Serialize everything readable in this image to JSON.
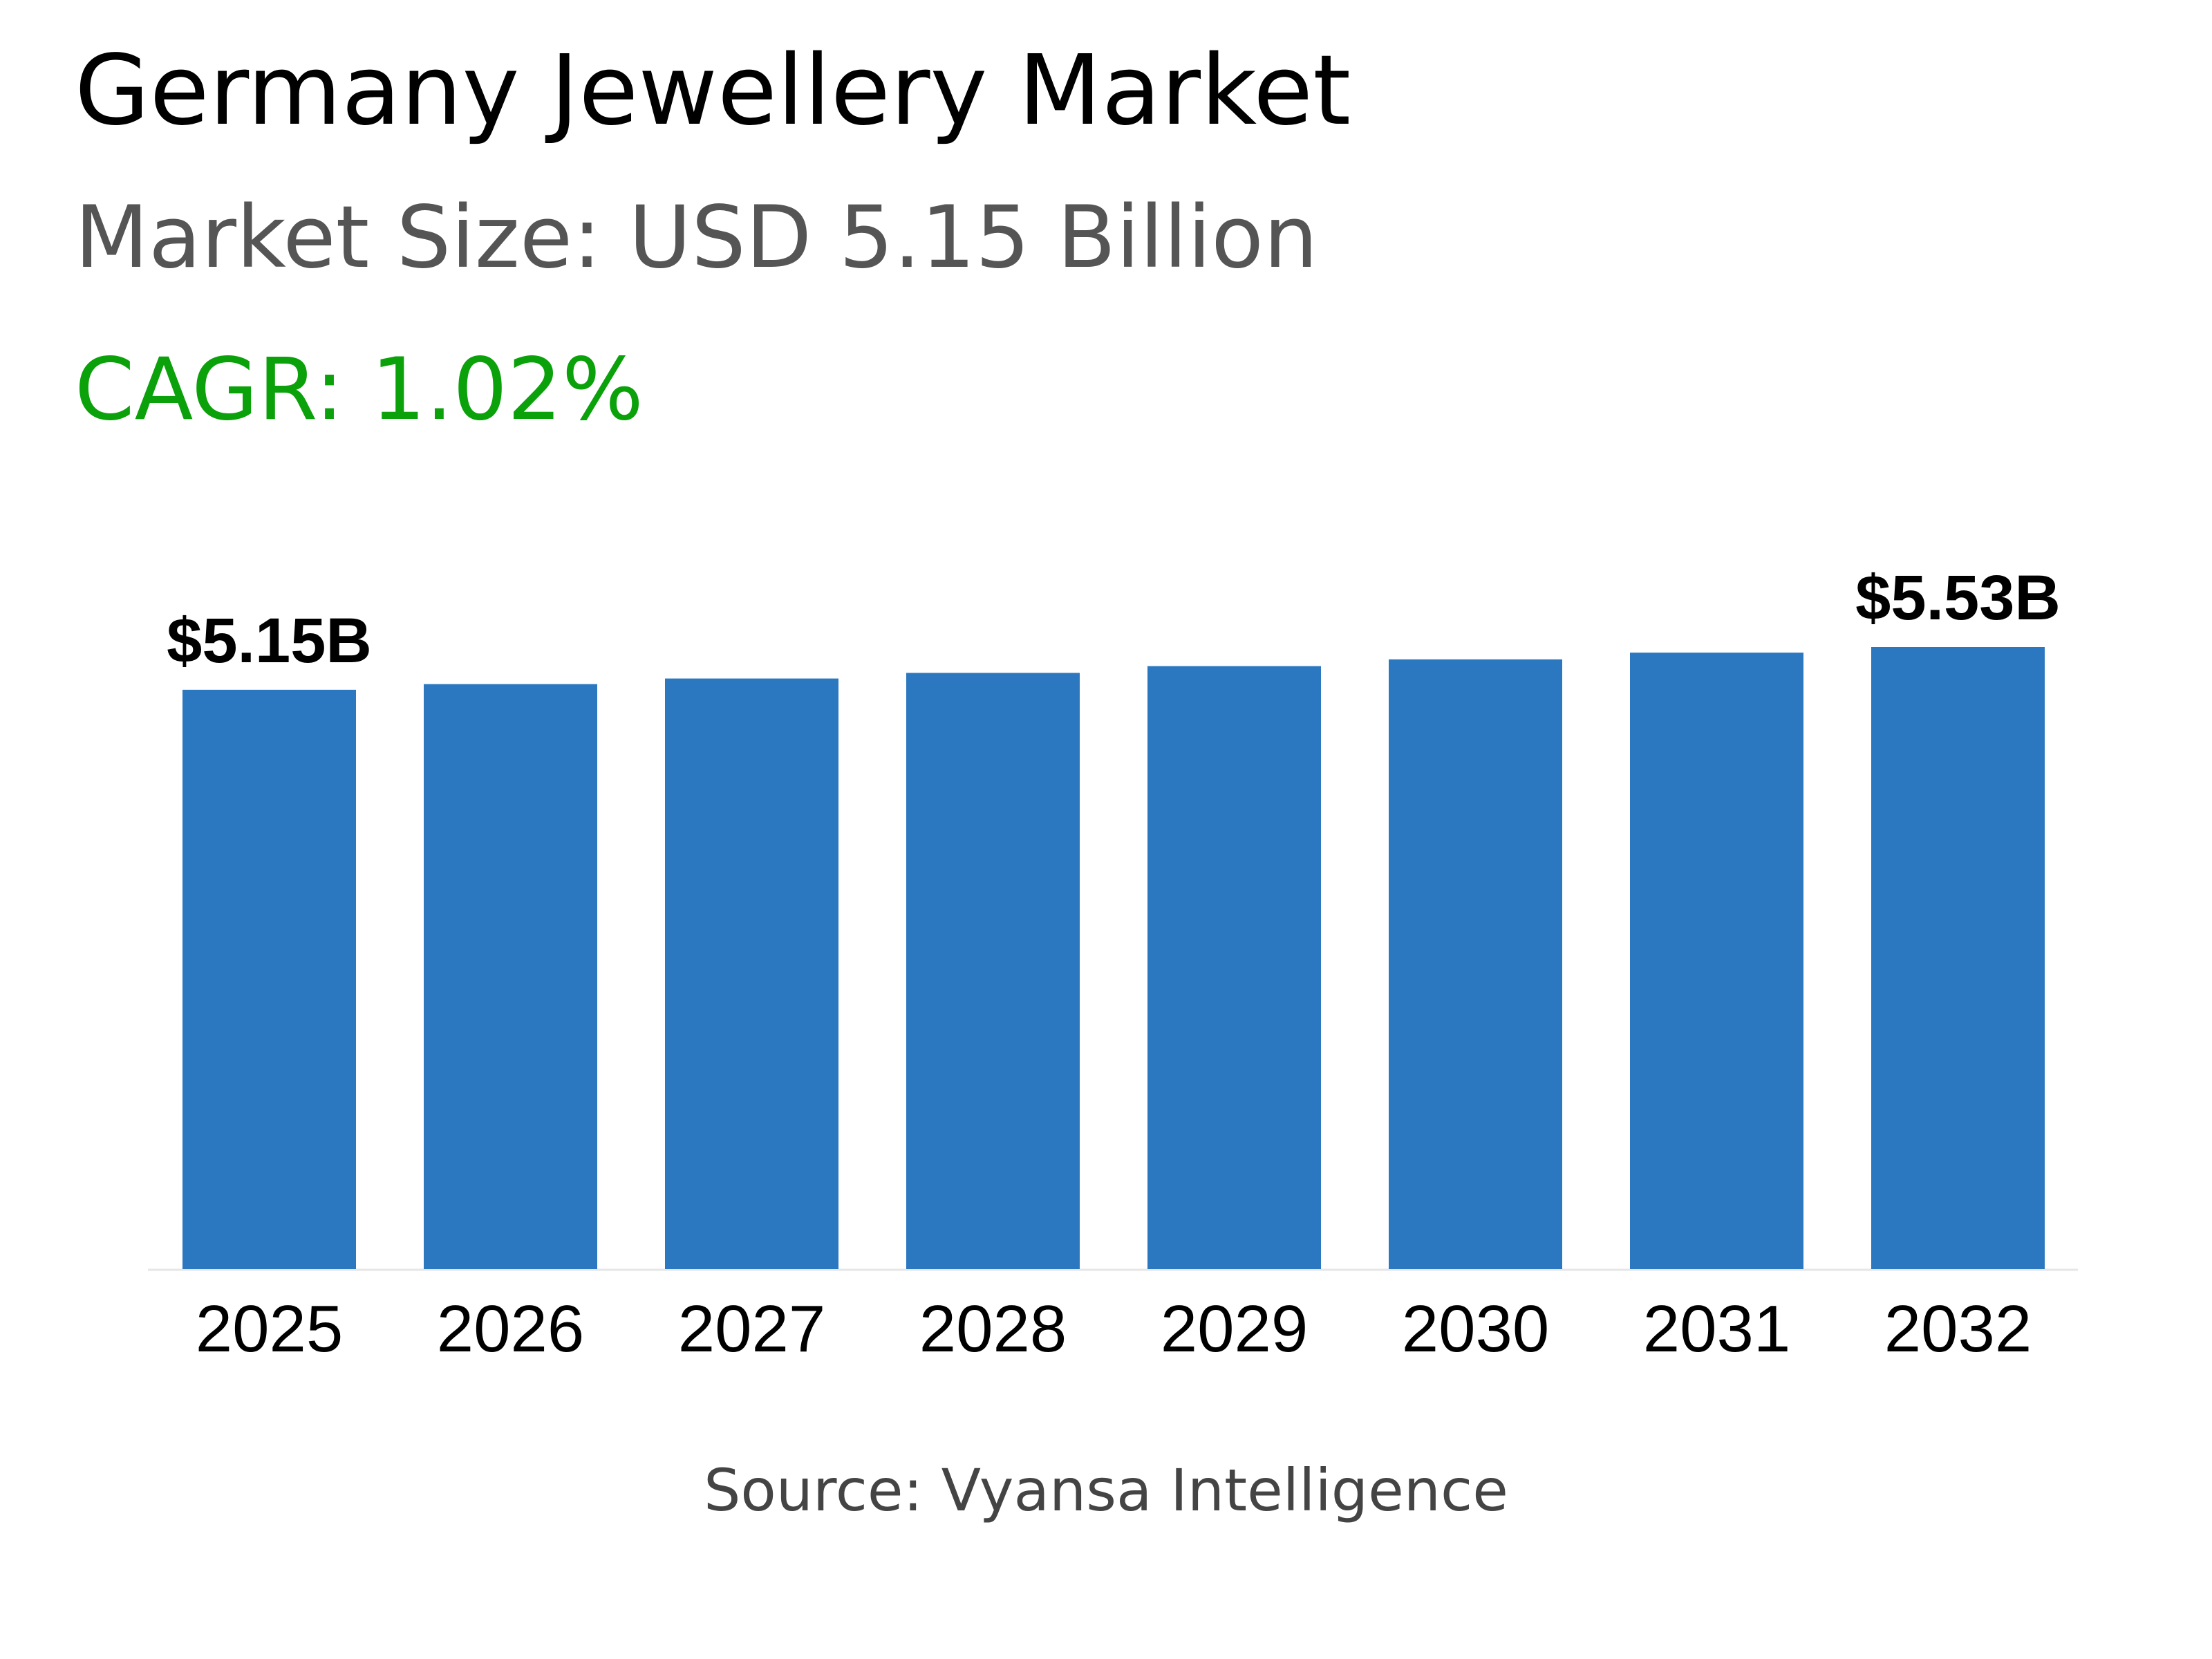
{
  "header": {
    "title": "Germany Jewellery Market",
    "market_size": "Market Size: USD 5.15 Billion",
    "cagr": "CAGR: 1.02%"
  },
  "footer": {
    "source": "Source: Vyansa Intelligence"
  },
  "colors": {
    "bar": "#2c78c0",
    "cagr": "#0aa10a",
    "subtitle": "#555555",
    "axis": "#e6e6e6"
  },
  "chart_data": {
    "type": "bar",
    "categories": [
      "2025",
      "2026",
      "2027",
      "2028",
      "2029",
      "2030",
      "2031",
      "2032"
    ],
    "values": [
      5.15,
      5.2,
      5.25,
      5.3,
      5.36,
      5.42,
      5.48,
      5.53
    ],
    "data_labels": [
      {
        "index": 0,
        "text": "$5.15B"
      },
      {
        "index": 7,
        "text": "$5.53B"
      }
    ],
    "ylim": [
      0,
      5.6
    ],
    "grid": false,
    "legend": "none"
  }
}
